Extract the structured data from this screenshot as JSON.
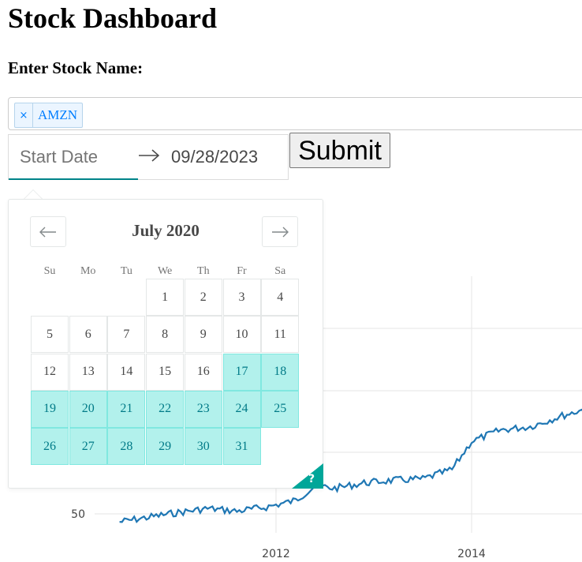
{
  "page": {
    "title": "Stock Dashboard",
    "stock_label": "Enter Stock Name:"
  },
  "tags": [
    {
      "label": "AMZN",
      "remove": "×"
    }
  ],
  "daterange": {
    "start_placeholder": "Start Date",
    "end_value": "09/28/2023"
  },
  "submit_label": "Submit",
  "calendar": {
    "month_label": "July 2020",
    "weekdays": [
      "Su",
      "Mo",
      "Tu",
      "We",
      "Th",
      "Fr",
      "Sa"
    ],
    "first_weekday_index": 3,
    "days_in_month": 31,
    "selected_from": 17,
    "selected_to": 31,
    "help": "?"
  },
  "colors": {
    "accent": "#008489",
    "selected_day": "#b2f1ec",
    "line": "#1f77b4",
    "tag": "#007eff"
  },
  "chart_data": {
    "type": "line",
    "xticks": [
      "2012",
      "2014"
    ],
    "yticks": [
      "50"
    ],
    "series": [
      {
        "color": "#1f77b4"
      }
    ],
    "x": [
      2010.4,
      2010.7,
      2011.0,
      2011.3,
      2011.6,
      2011.9,
      2012.2,
      2012.4,
      2012.6,
      2012.9,
      2013.2,
      2013.5,
      2013.8,
      2014.0,
      2014.3,
      2014.6,
      2014.9,
      2015.2,
      2015.3
    ],
    "y": [
      38,
      45,
      52,
      58,
      54,
      60,
      70,
      92,
      88,
      96,
      100,
      102,
      116,
      158,
      175,
      180,
      195,
      208,
      212
    ],
    "grid": true
  }
}
